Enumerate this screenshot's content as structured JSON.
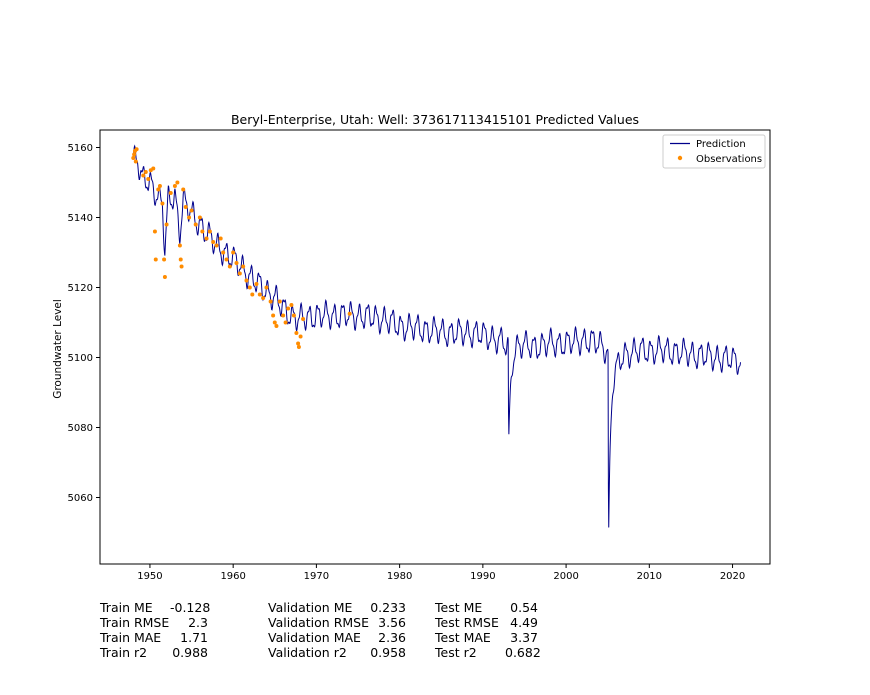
{
  "chart_data": {
    "type": "line",
    "title": "Beryl-Enterprise, Utah: Well: 373617113415101 Predicted Values",
    "xlabel": "",
    "ylabel": "Groundwater Level",
    "xlim": [
      1944,
      2024.5
    ],
    "ylim": [
      5041,
      5165
    ],
    "xticks": [
      1950,
      1960,
      1970,
      1980,
      1990,
      2000,
      2010,
      2020
    ],
    "yticks": [
      5060,
      5080,
      5100,
      5120,
      5140,
      5160
    ],
    "legend_position": "upper-right",
    "grid": false,
    "series": [
      {
        "name": "Prediction",
        "type": "line",
        "color": "#00008b",
        "anchors": [
          [
            1948.0,
            5157
          ],
          [
            1948.5,
            5157
          ],
          [
            1949.0,
            5151
          ],
          [
            1950.0,
            5150
          ],
          [
            1951.0,
            5146
          ],
          [
            1951.5,
            5144
          ],
          [
            1951.8,
            5130
          ],
          [
            1952.2,
            5145
          ],
          [
            1953.0,
            5146
          ],
          [
            1953.6,
            5136
          ],
          [
            1954.0,
            5145
          ],
          [
            1955.0,
            5141
          ],
          [
            1956.0,
            5138
          ],
          [
            1957.0,
            5135
          ],
          [
            1958.0,
            5132
          ],
          [
            1959.0,
            5130
          ],
          [
            1960.0,
            5128
          ],
          [
            1961.0,
            5126
          ],
          [
            1962.0,
            5123
          ],
          [
            1963.0,
            5121
          ],
          [
            1964.0,
            5119
          ],
          [
            1965.0,
            5117
          ],
          [
            1966.0,
            5114
          ],
          [
            1967.0,
            5112
          ],
          [
            1968.0,
            5111
          ],
          [
            1970.0,
            5112
          ],
          [
            1972.0,
            5112
          ],
          [
            1975.0,
            5112
          ],
          [
            1978.0,
            5111
          ],
          [
            1980.0,
            5109
          ],
          [
            1983.0,
            5108
          ],
          [
            1986.0,
            5107
          ],
          [
            1989.0,
            5107
          ],
          [
            1992.0,
            5105
          ],
          [
            1993.0,
            5103
          ],
          [
            1994.0,
            5104
          ],
          [
            1996.0,
            5103
          ],
          [
            1998.0,
            5104
          ],
          [
            2000.0,
            5104
          ],
          [
            2002.0,
            5105
          ],
          [
            2004.0,
            5104
          ],
          [
            2005.0,
            5102
          ],
          [
            2006.0,
            5098
          ],
          [
            2007.0,
            5101
          ],
          [
            2009.0,
            5102
          ],
          [
            2012.0,
            5102
          ],
          [
            2015.0,
            5101
          ],
          [
            2018.0,
            5100
          ],
          [
            2021.0,
            5099
          ]
        ],
        "amplitude": 3,
        "dips": [
          {
            "x": 1993.1,
            "y": 5075.5
          },
          {
            "x": 2005.1,
            "y": 5046.5
          }
        ]
      },
      {
        "name": "Observations",
        "type": "scatter",
        "color": "#ff8c00",
        "points": [
          [
            1948.0,
            5157
          ],
          [
            1948.1,
            5158
          ],
          [
            1948.2,
            5159
          ],
          [
            1948.3,
            5156
          ],
          [
            1948.4,
            5159.5
          ],
          [
            1949.2,
            5152
          ],
          [
            1949.5,
            5153
          ],
          [
            1949.8,
            5151
          ],
          [
            1950.1,
            5153.5
          ],
          [
            1950.4,
            5154
          ],
          [
            1950.6,
            5136
          ],
          [
            1950.7,
            5128
          ],
          [
            1951.0,
            5148
          ],
          [
            1951.2,
            5149
          ],
          [
            1951.5,
            5144
          ],
          [
            1951.7,
            5128
          ],
          [
            1951.8,
            5123
          ],
          [
            1952.0,
            5138
          ],
          [
            1952.5,
            5147
          ],
          [
            1953.0,
            5149
          ],
          [
            1953.3,
            5150
          ],
          [
            1953.6,
            5132
          ],
          [
            1953.7,
            5128
          ],
          [
            1953.8,
            5126
          ],
          [
            1954.0,
            5148
          ],
          [
            1954.3,
            5143
          ],
          [
            1954.7,
            5140
          ],
          [
            1955.0,
            5142
          ],
          [
            1955.5,
            5138
          ],
          [
            1956.0,
            5140
          ],
          [
            1956.3,
            5136
          ],
          [
            1956.8,
            5134
          ],
          [
            1957.2,
            5136
          ],
          [
            1957.6,
            5133
          ],
          [
            1958.0,
            5132
          ],
          [
            1958.5,
            5134
          ],
          [
            1958.8,
            5130
          ],
          [
            1959.2,
            5128
          ],
          [
            1959.6,
            5126
          ],
          [
            1960.0,
            5130
          ],
          [
            1960.4,
            5127
          ],
          [
            1960.8,
            5124
          ],
          [
            1961.2,
            5126
          ],
          [
            1961.6,
            5122
          ],
          [
            1962.0,
            5120
          ],
          [
            1962.3,
            5118
          ],
          [
            1962.8,
            5121
          ],
          [
            1963.2,
            5118
          ],
          [
            1963.6,
            5117
          ],
          [
            1964.0,
            5120
          ],
          [
            1964.5,
            5116
          ],
          [
            1964.8,
            5112
          ],
          [
            1965.0,
            5110
          ],
          [
            1965.2,
            5109
          ],
          [
            1965.6,
            5116
          ],
          [
            1966.0,
            5112
          ],
          [
            1966.3,
            5110
          ],
          [
            1966.6,
            5114
          ],
          [
            1967.0,
            5115
          ],
          [
            1967.3,
            5112
          ],
          [
            1967.6,
            5107
          ],
          [
            1967.8,
            5104
          ],
          [
            1967.9,
            5103
          ],
          [
            1968.1,
            5106
          ],
          [
            1968.4,
            5111
          ],
          [
            1974.0,
            5112.5
          ]
        ]
      }
    ]
  },
  "metrics": {
    "train": [
      {
        "label": "Train ME",
        "value": "-0.128"
      },
      {
        "label": "Train RMSE",
        "value": "2.3"
      },
      {
        "label": "Train MAE",
        "value": "1.71"
      },
      {
        "label": "Train r2",
        "value": "0.988"
      }
    ],
    "validation": [
      {
        "label": "Validation ME",
        "value": "0.233"
      },
      {
        "label": "Validation RMSE",
        "value": "3.56"
      },
      {
        "label": "Validation MAE",
        "value": "2.36"
      },
      {
        "label": "Validation r2",
        "value": "0.958"
      }
    ],
    "test": [
      {
        "label": "Test ME",
        "value": "0.54"
      },
      {
        "label": "Test RMSE",
        "value": "4.49"
      },
      {
        "label": "Test MAE",
        "value": "3.37"
      },
      {
        "label": "Test r2",
        "value": "0.682"
      }
    ]
  }
}
